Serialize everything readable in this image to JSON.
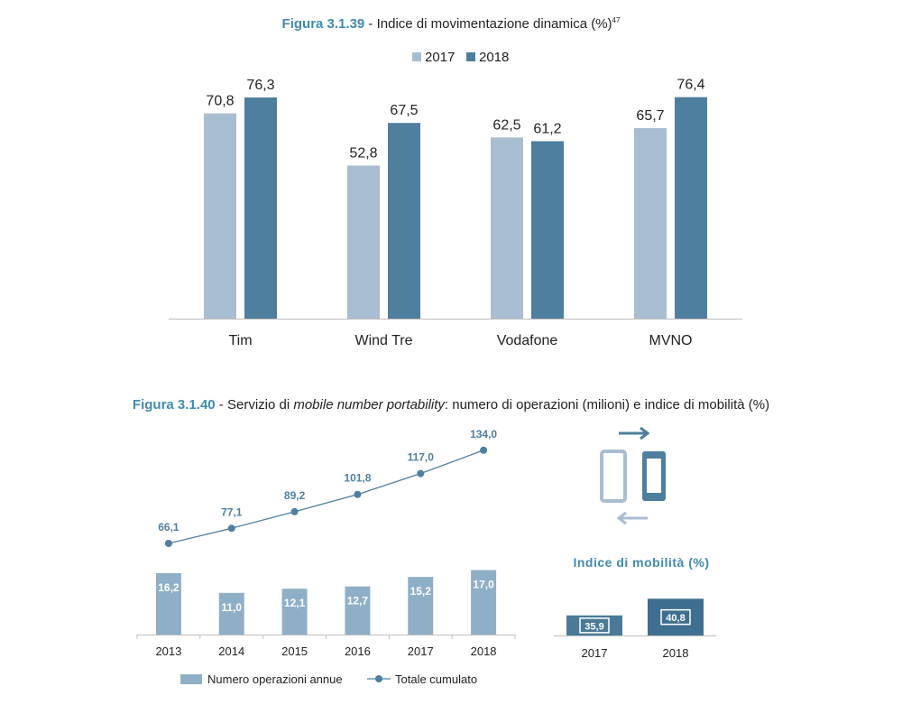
{
  "figure1": {
    "number": "Figura 3.1.39",
    "title": " - Indice di movimentazione dinamica (%)",
    "superscript": "47"
  },
  "figure2": {
    "number": "Figura 3.1.40",
    "title_pre": " - Servizio di ",
    "title_italic": "mobile number portability",
    "title_post": ": numero di operazioni (milioni) e indice di mobilità (%)",
    "side_title": "Indice di mobilità (%)"
  },
  "colors": {
    "light": "#a9bdd0",
    "dark": "#4f7f9e",
    "annual": "#8fafc6",
    "line": "#4f7f9e",
    "title_accent": "#3f8bb0",
    "mob_2017": "#4a7a98",
    "mob_2018": "#3f6f90"
  },
  "chart_data": [
    {
      "type": "bar",
      "categories": [
        "Tim",
        "Wind Tre",
        "Vodafone",
        "MVNO"
      ],
      "series": [
        {
          "name": "2017",
          "values": [
            70.8,
            52.8,
            62.5,
            65.7
          ],
          "labels": [
            "70,8",
            "52,8",
            "62,5",
            "65,7"
          ]
        },
        {
          "name": "2018",
          "values": [
            76.3,
            67.5,
            61.2,
            76.4
          ],
          "labels": [
            "76,3",
            "67,5",
            "61,2",
            "76,4"
          ]
        }
      ],
      "ylim": [
        0,
        85
      ],
      "legend": "top-center"
    },
    {
      "type": "bar",
      "categories": [
        "2013",
        "2014",
        "2015",
        "2016",
        "2017",
        "2018"
      ],
      "series": [
        {
          "name": "Numero operazioni annue",
          "kind": "bar",
          "values": [
            16.2,
            11.0,
            12.1,
            12.7,
            15.2,
            17.0
          ],
          "labels": [
            "16,2",
            "11,0",
            "12,1",
            "12,7",
            "15,2",
            "17,0"
          ]
        },
        {
          "name": "Totale cumulato",
          "kind": "line",
          "values": [
            66.1,
            77.1,
            89.2,
            101.8,
            117.0,
            134.0
          ],
          "labels": [
            "66,1",
            "77,1",
            "89,2",
            "101,8",
            "117,0",
            "134,0"
          ]
        }
      ],
      "legend": "bottom"
    },
    {
      "type": "bar",
      "categories": [
        "2017",
        "2018"
      ],
      "values": [
        35.9,
        40.8
      ],
      "labels": [
        "35,9",
        "40,8"
      ],
      "title": "Indice di mobilità (%)"
    }
  ]
}
